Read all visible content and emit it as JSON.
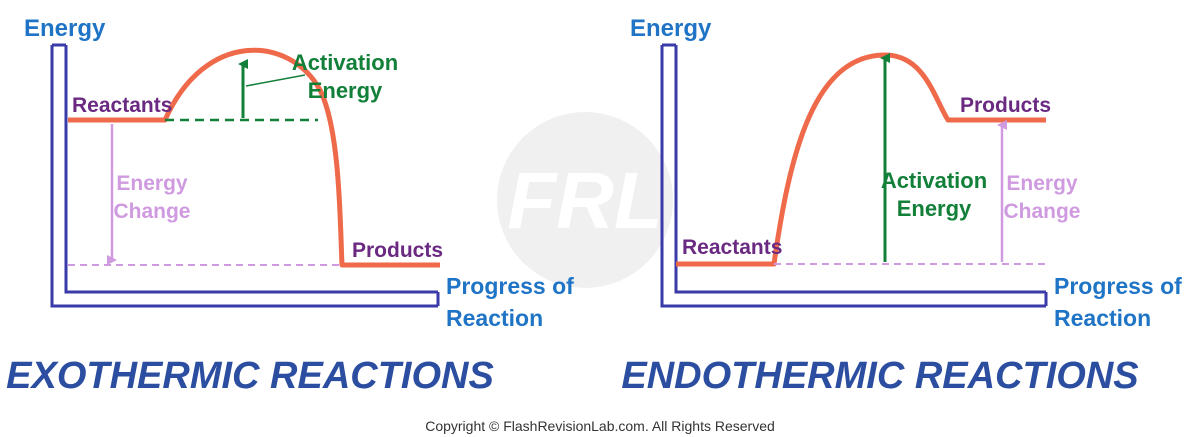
{
  "colors": {
    "axis": "#3a3aa8",
    "axis_label": "#1f74c6",
    "curve": "#ef6a4a",
    "activation": "#13803a",
    "species": "#6a2a82",
    "energy_change": "#cf9ae0",
    "title": "#2c4ea0",
    "watermark": "#ececec",
    "copyright": "#333333"
  },
  "exothermic": {
    "y_axis_label": "Energy",
    "x_axis_label_line1": "Progress of",
    "x_axis_label_line2": "Reaction",
    "reactants_label": "Reactants",
    "products_label": "Products",
    "activation_label_line1": "Activation",
    "activation_label_line2": "Energy",
    "energy_change_label_line1": "Energy",
    "energy_change_label_line2": "Change",
    "title": "EXOTHERMIC REACTIONS"
  },
  "endothermic": {
    "y_axis_label": "Energy",
    "x_axis_label_line1": "Progress of",
    "x_axis_label_line2": "Reaction",
    "reactants_label": "Reactants",
    "products_label": "Products",
    "activation_label_line1": "Activation",
    "activation_label_line2": "Energy",
    "energy_change_label_line1": "Energy",
    "energy_change_label_line2": "Change",
    "title": "ENDOTHERMIC REACTIONS"
  },
  "watermark_text": "FRL",
  "copyright": "Copyright © FlashRevisionLab.com. All Rights Reserved"
}
